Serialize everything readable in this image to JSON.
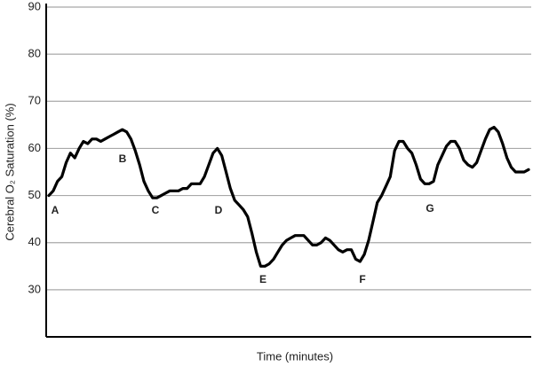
{
  "chart_data": {
    "type": "line",
    "y_label": "Cerebral O₂ Saturation (%)",
    "x_label": "Time (minutes)",
    "ylim": [
      20,
      90
    ],
    "yticks": [
      30,
      40,
      50,
      60,
      70,
      80,
      90
    ],
    "grid": true,
    "color": "#000000",
    "annotations": [
      "A",
      "B",
      "C",
      "D",
      "E",
      "F",
      "G"
    ],
    "values": [
      50,
      51,
      53,
      54,
      57,
      59,
      58,
      60,
      61.5,
      61,
      62,
      62,
      61.5,
      62,
      62.5,
      63,
      63.5,
      64,
      63.5,
      62,
      59.5,
      56.5,
      53,
      51,
      49.5,
      49.5,
      50,
      50.5,
      51,
      51,
      51,
      51.5,
      51.5,
      52.5,
      52.5,
      52.5,
      54,
      56.5,
      59,
      60,
      58.5,
      55,
      51.5,
      49,
      48,
      47,
      45.5,
      42,
      38,
      35,
      35,
      35.5,
      36.5,
      38,
      39.5,
      40.5,
      41,
      41.5,
      41.5,
      41.5,
      40.5,
      39.5,
      39.5,
      40,
      41,
      40.5,
      39.5,
      38.5,
      38,
      38.5,
      38.5,
      36.5,
      36,
      37.5,
      40.5,
      44.5,
      48.5,
      50,
      52,
      54,
      59.5,
      61.5,
      61.5,
      60,
      59,
      56.5,
      53.5,
      52.5,
      52.5,
      53,
      56.5,
      58.5,
      60.5,
      61.5,
      61.5,
      60,
      57.5,
      56.5,
      56,
      57,
      59.5,
      62,
      64,
      64.5,
      63.5,
      61,
      58,
      56,
      55,
      55,
      55,
      55.5
    ]
  }
}
